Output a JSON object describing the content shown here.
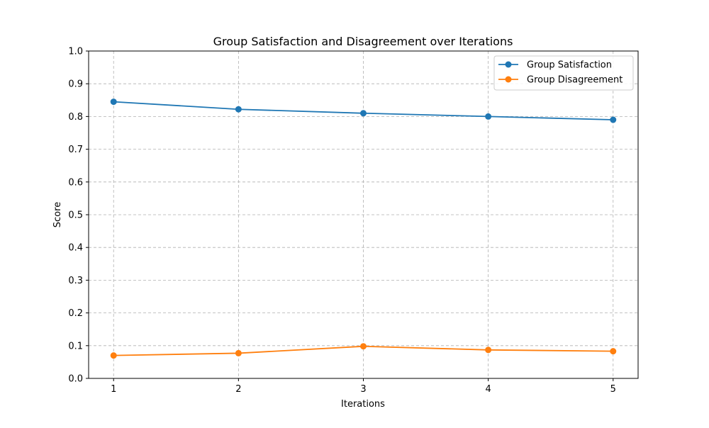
{
  "chart_data": {
    "type": "line",
    "title": "Group Satisfaction and Disagreement over Iterations",
    "xlabel": "Iterations",
    "ylabel": "Score",
    "x": [
      1,
      2,
      3,
      4,
      5
    ],
    "xlim": [
      0.8,
      5.2
    ],
    "ylim": [
      0.0,
      1.0
    ],
    "x_ticks": [
      "1",
      "2",
      "3",
      "4",
      "5"
    ],
    "y_ticks": [
      "0.0",
      "0.1",
      "0.2",
      "0.3",
      "0.4",
      "0.5",
      "0.6",
      "0.7",
      "0.8",
      "0.9",
      "1.0"
    ],
    "grid": true,
    "legend_position": "top-right",
    "series": [
      {
        "name": "Group Satisfaction",
        "color": "#1f77b4",
        "values": [
          0.845,
          0.822,
          0.81,
          0.8,
          0.79
        ]
      },
      {
        "name": "Group Disagreement",
        "color": "#ff7f0e",
        "values": [
          0.07,
          0.077,
          0.098,
          0.087,
          0.083
        ]
      }
    ]
  }
}
